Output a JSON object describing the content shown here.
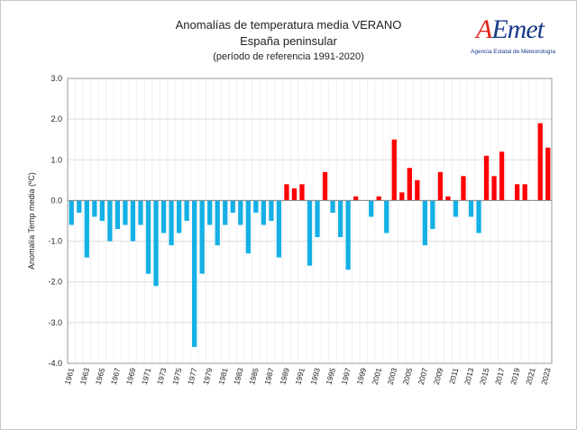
{
  "chart_data": {
    "type": "bar",
    "title": "Anomalías de temperatura media VERANO",
    "subtitle": "España peninsular",
    "subtitle2": "(período de referencia 1991-2020)",
    "xlabel": "",
    "ylabel": "Anomalía Temp media (ºC)",
    "ylim": [
      -4.0,
      3.0
    ],
    "yticks": [
      "3.0",
      "2.0",
      "1.0",
      "0.0",
      "-1.0",
      "-2.0",
      "-3.0",
      "-4.0"
    ],
    "grid": true,
    "positive_color": "#ff0000",
    "negative_color": "#14b0e6",
    "categories": [
      1961,
      1962,
      1963,
      1964,
      1965,
      1966,
      1967,
      1968,
      1969,
      1970,
      1971,
      1972,
      1973,
      1974,
      1975,
      1976,
      1977,
      1978,
      1979,
      1980,
      1981,
      1982,
      1983,
      1984,
      1985,
      1986,
      1987,
      1988,
      1989,
      1990,
      1991,
      1992,
      1993,
      1994,
      1995,
      1996,
      1997,
      1998,
      1999,
      2000,
      2001,
      2002,
      2003,
      2004,
      2005,
      2006,
      2007,
      2008,
      2009,
      2010,
      2011,
      2012,
      2013,
      2014,
      2015,
      2016,
      2017,
      2018,
      2019,
      2020,
      2021,
      2022,
      2023
    ],
    "values": [
      -0.6,
      -0.3,
      -1.4,
      -0.4,
      -0.5,
      -1.0,
      -0.7,
      -0.6,
      -1.0,
      -0.6,
      -1.8,
      -2.1,
      -0.8,
      -1.1,
      -0.8,
      -0.5,
      -3.6,
      -1.8,
      -0.6,
      -1.1,
      -0.6,
      -0.3,
      -0.6,
      -1.3,
      -0.3,
      -0.6,
      -0.5,
      -1.4,
      0.4,
      0.3,
      0.4,
      -1.6,
      -0.9,
      0.7,
      -0.3,
      -0.9,
      -1.7,
      0.1,
      0.0,
      -0.4,
      0.1,
      -0.8,
      1.5,
      0.2,
      0.8,
      0.5,
      -1.1,
      -0.7,
      0.7,
      0.1,
      -0.4,
      0.6,
      -0.4,
      -0.8,
      1.1,
      0.6,
      1.2,
      0.0,
      0.4,
      0.4,
      0.0,
      1.9,
      1.3
    ],
    "xtick_labels": [
      "1961",
      "1963",
      "1965",
      "1967",
      "1969",
      "1971",
      "1973",
      "1975",
      "1977",
      "1979",
      "1981",
      "1983",
      "1985",
      "1987",
      "1989",
      "1991",
      "1993",
      "1995",
      "1997",
      "1999",
      "2001",
      "2003",
      "2005",
      "2007",
      "2009",
      "2011",
      "2013",
      "2015",
      "2017",
      "2019",
      "2021",
      "2023"
    ]
  },
  "logo": {
    "name": "AEMet",
    "tagline": "Agencia Estatal de Meteorología"
  }
}
